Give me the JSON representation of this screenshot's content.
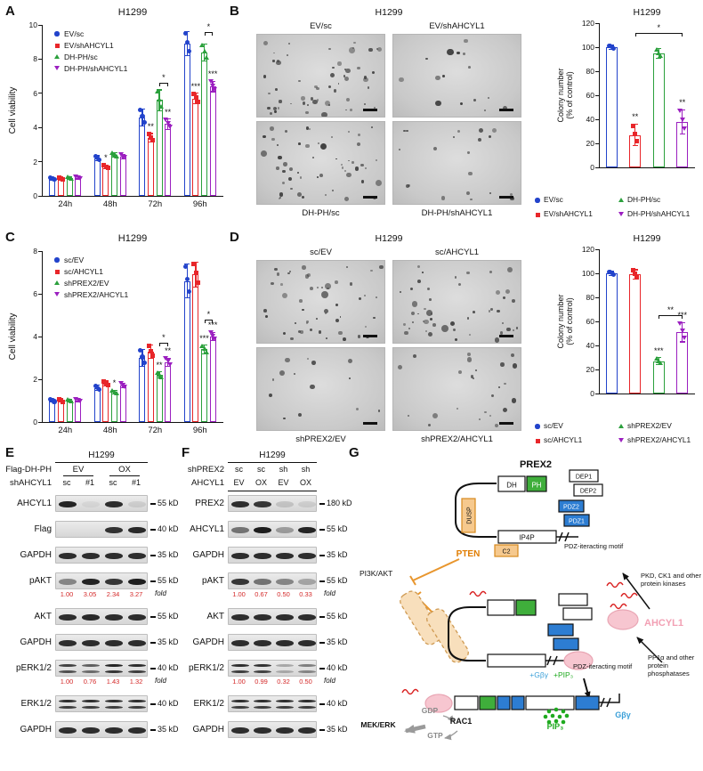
{
  "panel_letters": [
    "A",
    "B",
    "C",
    "D",
    "E",
    "F",
    "G"
  ],
  "colors": {
    "blue": "#2243cb",
    "red": "#e8262a",
    "green": "#2ba03c",
    "purple": "#9b1fc0",
    "fold_red": "#d42a2a",
    "orange_pten": "#e07c00",
    "pink_ahcyl1": "#f2a0b4",
    "blue_gbg": "#3a9fd8",
    "green_pip3": "#1faa1f"
  },
  "chart_data": [
    {
      "id": "A",
      "type": "bar",
      "title": "H1299",
      "ylabel": "Cell viability",
      "ylim": [
        0,
        10
      ],
      "yticks": [
        0,
        2,
        4,
        6,
        8,
        10
      ],
      "categories": [
        "24h",
        "48h",
        "72h",
        "96h"
      ],
      "legend_position": "inside-top-left",
      "grid": false,
      "series": [
        {
          "name": "EV/sc",
          "color": "#2243cb",
          "marker": "circle",
          "values": [
            1.0,
            2.2,
            4.6,
            8.9
          ],
          "errors": [
            0.08,
            0.15,
            0.5,
            0.7
          ],
          "stars": [
            "",
            "",
            "",
            ""
          ]
        },
        {
          "name": "EV/shAHCYL1",
          "color": "#e8262a",
          "marker": "square",
          "values": [
            1.0,
            1.7,
            3.4,
            5.7
          ],
          "errors": [
            0.08,
            0.12,
            0.25,
            0.3
          ],
          "stars": [
            "",
            "*",
            "**",
            "***"
          ]
        },
        {
          "name": "DH-PH/sc",
          "color": "#2ba03c",
          "marker": "triangle-up",
          "values": [
            1.05,
            2.4,
            5.6,
            8.4
          ],
          "errors": [
            0.08,
            0.15,
            0.6,
            0.5
          ],
          "stars": [
            "",
            "",
            "",
            ""
          ]
        },
        {
          "name": "DH-PH/shAHCYL1",
          "color": "#9b1fc0",
          "marker": "triangle-down",
          "values": [
            1.05,
            2.3,
            4.2,
            6.4
          ],
          "errors": [
            0.08,
            0.12,
            0.3,
            0.3
          ],
          "stars": [
            "",
            "",
            "**",
            "***"
          ]
        }
      ],
      "brackets": [
        {
          "category_index": 2,
          "from": 2,
          "to": 3,
          "y": 6.6,
          "label": "*"
        },
        {
          "category_index": 3,
          "from": 2,
          "to": 3,
          "y": 9.6,
          "label": "*"
        }
      ]
    },
    {
      "id": "B",
      "type": "bar",
      "title": "H1299",
      "ylabel": "Colony number\n(% of control)",
      "ylim": [
        0,
        120
      ],
      "yticks": [
        0,
        20,
        40,
        60,
        80,
        100,
        120
      ],
      "categories": [
        ""
      ],
      "grid": false,
      "series": [
        {
          "name": "EV/sc",
          "color": "#2243cb",
          "marker": "circle",
          "values": [
            100
          ],
          "errors": [
            1.5
          ],
          "stars": [
            ""
          ]
        },
        {
          "name": "EV/shAHCYL1",
          "color": "#e8262a",
          "marker": "square",
          "values": [
            27
          ],
          "errors": [
            9
          ],
          "stars": [
            "**"
          ]
        },
        {
          "name": "DH-PH/sc",
          "color": "#2ba03c",
          "marker": "triangle-up",
          "values": [
            95
          ],
          "errors": [
            4
          ],
          "stars": [
            ""
          ]
        },
        {
          "name": "DH-PH/shAHCYL1",
          "color": "#9b1fc0",
          "marker": "triangle-down",
          "values": [
            38
          ],
          "errors": [
            10
          ],
          "stars": [
            "**"
          ]
        }
      ],
      "brackets": [
        {
          "category_index": 0,
          "from": 1,
          "to": 3,
          "y": 112,
          "label": "*"
        }
      ]
    },
    {
      "id": "C",
      "type": "bar",
      "title": "H1299",
      "ylabel": "Cell viability",
      "ylim": [
        0,
        8
      ],
      "yticks": [
        0,
        2,
        4,
        6,
        8
      ],
      "categories": [
        "24h",
        "48h",
        "72h",
        "96h"
      ],
      "legend_position": "inside-top-left",
      "grid": false,
      "series": [
        {
          "name": "sc/EV",
          "color": "#2243cb",
          "marker": "circle",
          "values": [
            1.0,
            1.6,
            3.0,
            6.6
          ],
          "errors": [
            0.07,
            0.12,
            0.4,
            0.8
          ],
          "stars": [
            "",
            "",
            "",
            ""
          ]
        },
        {
          "name": "sc/AHCYL1",
          "color": "#e8262a",
          "marker": "square",
          "values": [
            1.0,
            1.8,
            3.3,
            6.9
          ],
          "errors": [
            0.07,
            0.12,
            0.3,
            0.6
          ],
          "stars": [
            "",
            "",
            "",
            ""
          ]
        },
        {
          "name": "shPREX2/EV",
          "color": "#2ba03c",
          "marker": "triangle-up",
          "values": [
            1.0,
            1.4,
            2.2,
            3.4
          ],
          "errors": [
            0.07,
            0.1,
            0.15,
            0.2
          ],
          "stars": [
            "",
            "*",
            "**",
            "***"
          ]
        },
        {
          "name": "shPREX2/AHCYL1",
          "color": "#9b1fc0",
          "marker": "triangle-down",
          "values": [
            1.0,
            1.7,
            2.8,
            4.0
          ],
          "errors": [
            0.07,
            0.1,
            0.2,
            0.2
          ],
          "stars": [
            "",
            "",
            "**",
            "***"
          ]
        }
      ],
      "brackets": [
        {
          "category_index": 2,
          "from": 2,
          "to": 3,
          "y": 3.7,
          "label": "*"
        },
        {
          "category_index": 3,
          "from": 2,
          "to": 3,
          "y": 4.8,
          "label": "*"
        }
      ]
    },
    {
      "id": "D",
      "type": "bar",
      "title": "H1299",
      "ylabel": "Colony number\n(% of control)",
      "ylim": [
        0,
        120
      ],
      "yticks": [
        0,
        20,
        40,
        60,
        80,
        100,
        120
      ],
      "categories": [
        ""
      ],
      "grid": false,
      "series": [
        {
          "name": "sc/EV",
          "color": "#2243cb",
          "marker": "circle",
          "values": [
            100
          ],
          "errors": [
            1.5
          ],
          "stars": [
            ""
          ]
        },
        {
          "name": "sc/AHCYL1",
          "color": "#e8262a",
          "marker": "square",
          "values": [
            99
          ],
          "errors": [
            4
          ],
          "stars": [
            ""
          ]
        },
        {
          "name": "shPREX2/EV",
          "color": "#2ba03c",
          "marker": "triangle-up",
          "values": [
            27
          ],
          "errors": [
            3
          ],
          "stars": [
            "***"
          ]
        },
        {
          "name": "shPREX2/AHCYL1",
          "color": "#9b1fc0",
          "marker": "triangle-down",
          "values": [
            51
          ],
          "errors": [
            8
          ],
          "stars": [
            "***"
          ]
        }
      ],
      "brackets": [
        {
          "category_index": 0,
          "from": 2,
          "to": 3,
          "y": 65,
          "label": "**"
        }
      ]
    }
  ],
  "colony_panels": {
    "B": {
      "title": "H1299",
      "images": [
        {
          "label": "EV/sc",
          "label_pos": "top",
          "colony_density": "high",
          "dots": 58
        },
        {
          "label": "EV/shAHCYL1",
          "label_pos": "top",
          "colony_density": "low",
          "dots": 16
        },
        {
          "label": "DH-PH/sc",
          "label_pos": "bottom",
          "colony_density": "high",
          "dots": 52
        },
        {
          "label": "DH-PH/shAHCYL1",
          "label_pos": "bottom",
          "colony_density": "low",
          "dots": 20
        }
      ]
    },
    "D": {
      "title": "H1299",
      "images": [
        {
          "label": "sc/EV",
          "label_pos": "top",
          "colony_density": "high",
          "dots": 50
        },
        {
          "label": "sc/AHCYL1",
          "label_pos": "top",
          "colony_density": "high",
          "dots": 48
        },
        {
          "label": "shPREX2/EV",
          "label_pos": "bottom",
          "colony_density": "low",
          "dots": 14
        },
        {
          "label": "shPREX2/AHCYL1",
          "label_pos": "bottom",
          "colony_density": "low",
          "dots": 24
        }
      ]
    }
  },
  "blots": {
    "E": {
      "cell_line": "H1299",
      "fold_label": "fold",
      "rule_after_header": false,
      "header_rows": [
        {
          "label": "Flag-DH-PH",
          "groups": [
            {
              "text": "EV",
              "span": 2
            },
            {
              "text": "OX",
              "span": 2
            }
          ]
        },
        {
          "label": "shAHCYL1",
          "lanes": [
            "sc",
            "#1",
            "sc",
            "#1"
          ]
        }
      ],
      "rows": [
        {
          "label": "AHCYL1",
          "size": "55 kD",
          "bands": [
            0.95,
            0.05,
            0.9,
            0.1
          ]
        },
        {
          "label": "Flag",
          "size": "40 kD",
          "bands": [
            0.02,
            0.02,
            0.88,
            0.92
          ]
        },
        {
          "label": "GAPDH",
          "size": "35 kD",
          "bands": [
            0.9,
            0.9,
            0.9,
            0.9
          ]
        },
        {
          "label": "pAKT",
          "size": "55 kD",
          "bands": [
            0.45,
            0.95,
            0.85,
            0.97
          ],
          "fold": [
            "1.00",
            "3.05",
            "2.34",
            "3.27"
          ]
        },
        {
          "label": "AKT",
          "size": "55 kD",
          "bands": [
            0.9,
            0.92,
            0.9,
            0.9
          ]
        },
        {
          "label": "GAPDH",
          "size": "35 kD",
          "bands": [
            0.9,
            0.9,
            0.9,
            0.9
          ]
        },
        {
          "label": "pERK1/2",
          "size": "40 kD",
          "bands": [
            0.8,
            0.65,
            0.95,
            0.9
          ],
          "fold": [
            "1.00",
            "0.76",
            "1.43",
            "1.32"
          ],
          "doublet": true
        },
        {
          "label": "ERK1/2",
          "size": "40 kD",
          "bands": [
            0.9,
            0.9,
            0.9,
            0.9
          ],
          "doublet": true
        },
        {
          "label": "GAPDH",
          "size": "35 kD",
          "bands": [
            0.9,
            0.9,
            0.9,
            0.9
          ]
        }
      ]
    },
    "F": {
      "cell_line": "H1299",
      "fold_label": "fold",
      "rule_after_header": true,
      "header_rows": [
        {
          "label": "shPREX2",
          "lanes": [
            "sc",
            "sc",
            "sh",
            "sh"
          ]
        },
        {
          "label": "AHCYL1",
          "lanes": [
            "EV",
            "OX",
            "EV",
            "OX"
          ]
        }
      ],
      "rows": [
        {
          "label": "PREX2",
          "size": "180 kD",
          "bands": [
            0.9,
            0.85,
            0.15,
            0.1
          ]
        },
        {
          "label": "AHCYL1",
          "size": "55 kD",
          "bands": [
            0.55,
            0.98,
            0.35,
            0.95
          ]
        },
        {
          "label": "GAPDH",
          "size": "35 kD",
          "bands": [
            0.9,
            0.9,
            0.9,
            0.9
          ]
        },
        {
          "label": "pAKT",
          "size": "55 kD",
          "bands": [
            0.85,
            0.55,
            0.45,
            0.3
          ],
          "fold": [
            "1.00",
            "0.67",
            "0.50",
            "0.33"
          ]
        },
        {
          "label": "AKT",
          "size": "55 kD",
          "bands": [
            0.9,
            0.9,
            0.9,
            0.9
          ]
        },
        {
          "label": "GAPDH",
          "size": "35 kD",
          "bands": [
            0.9,
            0.9,
            0.9,
            0.9
          ]
        },
        {
          "label": "pERK1/2",
          "size": "40 kD",
          "bands": [
            0.9,
            0.88,
            0.3,
            0.5
          ],
          "fold": [
            "1.00",
            "0.99",
            "0.32",
            "0.50"
          ],
          "doublet": true
        },
        {
          "label": "ERK1/2",
          "size": "40 kD",
          "bands": [
            0.9,
            0.9,
            0.9,
            0.9
          ],
          "doublet": true
        },
        {
          "label": "GAPDH",
          "size": "35 kD",
          "bands": [
            0.9,
            0.9,
            0.9,
            0.9
          ]
        }
      ]
    }
  },
  "diagram": {
    "prex2": "PREX2",
    "domains": {
      "dh": "DH",
      "ph": "PH",
      "dep1": "DEP1",
      "dep2": "DEP2",
      "pdz2": "PDZ2",
      "pdz1": "PDZ1",
      "ip4p": "IP4P",
      "dusp": "DUSP",
      "c2": "C2"
    },
    "pten": "PTEN",
    "pdz_motif_top": "PDZ-iteracting motif",
    "pdz_motif_mid": "PDZ-iteracting motif",
    "pi3k_akt": "PI3K/AKT",
    "kinases": "PKD, CK1 and other protein kinases",
    "ahcyl1": "AHCYL1",
    "phosphatases": "PP1α and other protein phosphatases",
    "gbg_plus": "+Gβγ",
    "pip3_plus": "+PIP₃",
    "pip3": "PIP₃",
    "gbg": "Gβγ",
    "gdp": "GDP",
    "rac1": "RAC1",
    "gtp": "GTP",
    "mek_erk": "MEK/ERK"
  }
}
